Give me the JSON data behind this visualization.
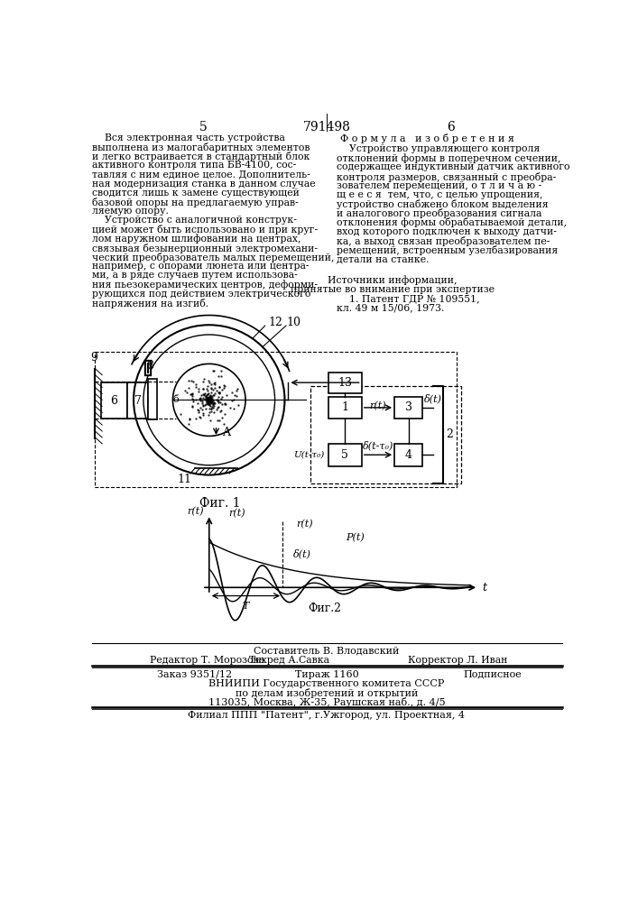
{
  "bg_color": "#ffffff",
  "page_number_left": "5",
  "page_number_center": "791498",
  "page_number_right": "6",
  "left_text": [
    "    Вся электронная часть устройства",
    "выполнена из малогабаритных элементов",
    "и легко встраивается в стандартный блок",
    "активного контроля типа БВ-4100, сос-",
    "тавляя с ним единое целое. Дополнитель-",
    "ная модернизация станка в данном случае",
    "сводится лишь к замене существующей",
    "базовой опоры на предлагаемую управ-",
    "ляемую опору.",
    "    Устройство с аналогичной конструк-",
    "цией может быть использовано и при круг-",
    "лом наружном шлифовании на центрах,",
    "связывая безынерционный электромехани-",
    "ческий преобразователь малых перемещений,",
    "например, с опорами люнета или центра-",
    "ми, а в ряде случаев путем использова-",
    "ния пьезокерамических центров, деформи-",
    "рующихся под действием электрического",
    "напряжения на изгиб."
  ],
  "right_header": "Ф о р м у л а   и з о б р е т е н и я",
  "right_text": [
    "    Устройство управляющего контроля",
    "отклонений формы в поперечном сечении,",
    "содержащее индуктивный датчик активного",
    "контроля размеров, связанный с преобра-",
    "зователем перемещений, о т л и ч а ю -",
    "щ е е с я  тем, что, с целью упрощения,",
    "устройство снабжено блоком выделения",
    "и аналогового преобразования сигнала",
    "отклонения формы обрабатываемой детали,",
    "вход которого подключен к выходу датчи-",
    "ка, а выход связан преобразователем пе-",
    "ремещений, встроенным узелбазирования",
    "детали на станке."
  ],
  "sources_header": "Источники информации,",
  "sources_sub": "принятые во внимание при экспертизе",
  "source1": "    1. Патент ГДР № 109551,",
  "source2": "кл. 49 м 15/06, 1973.",
  "fig1_caption": "Фиг. 1",
  "fig2_caption": "Фиг.2",
  "bottom_line1": "Составитель В. Влодавский",
  "bottom_line2_a": "Редактор Т. Морозова",
  "bottom_line2_b": "Техред А.Савка",
  "bottom_line2_c": "Корректор Л. Иван",
  "bottom_line3_a": "Заказ 9351/12",
  "bottom_line3_b": "Тираж 1160",
  "bottom_line3_c": "Подписное",
  "bottom_line4": "ВНИИПИ Государственного комитета СССР",
  "bottom_line5": "по делам изобретений и открытий",
  "bottom_line6": "113035, Москва, Ж-35, Раушская наб., д. 4/5",
  "bottom_line7": "Филиал ППП \"Патент\", г.Ужгород, ул. Проектная, 4"
}
